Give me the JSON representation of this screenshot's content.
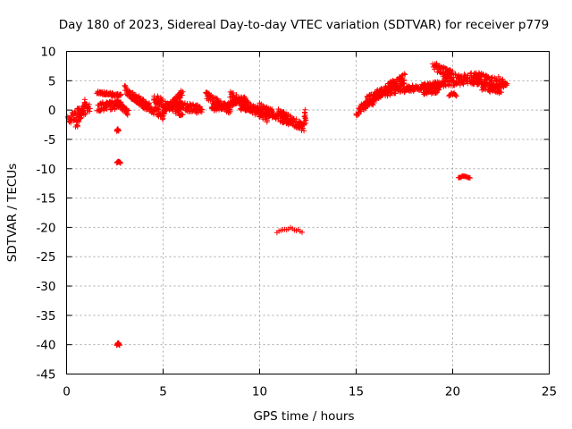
{
  "chart_data": {
    "type": "scatter",
    "title": "Day 180 of 2023, Sidereal Day-to-day VTEC variation (SDTVAR) for receiver p779",
    "xlabel": "GPS time / hours",
    "ylabel": "SDTVAR / TECUs",
    "xlim": [
      0,
      25
    ],
    "ylim": [
      -45,
      10
    ],
    "xticks": [
      0,
      5,
      10,
      15,
      20,
      25
    ],
    "yticks": [
      10,
      5,
      0,
      -5,
      -10,
      -15,
      -20,
      -25,
      -30,
      -35,
      -40,
      -45
    ],
    "grid": true,
    "marker": "+",
    "color": "#ff0000",
    "series": [
      {
        "name": "SDTVAR",
        "segments": [
          {
            "x0": 0.1,
            "y0": -1.5,
            "x1": 1.2,
            "y1": 0.5,
            "spread": 2.0
          },
          {
            "x0": 0.5,
            "y0": -3.0,
            "x1": 1.0,
            "y1": 1.5,
            "spread": 1.0
          },
          {
            "x0": 1.6,
            "y0": 3.0,
            "x1": 2.8,
            "y1": 2.5,
            "spread": 0.5
          },
          {
            "x0": 1.6,
            "y0": 0.5,
            "x1": 2.8,
            "y1": 1.0,
            "spread": 1.5
          },
          {
            "x0": 2.5,
            "y0": 1.5,
            "x1": 3.2,
            "y1": -0.5,
            "spread": 1.0
          },
          {
            "x0": 3.0,
            "y0": 3.5,
            "x1": 4.2,
            "y1": 0.5,
            "spread": 1.5
          },
          {
            "x0": 3.5,
            "y0": 2.0,
            "x1": 5.0,
            "y1": -1.0,
            "spread": 1.5
          },
          {
            "x0": 4.5,
            "y0": 2.0,
            "x1": 6.0,
            "y1": -0.5,
            "spread": 1.5
          },
          {
            "x0": 5.0,
            "y0": -0.5,
            "x1": 6.0,
            "y1": 3.0,
            "spread": 1.0
          },
          {
            "x0": 5.5,
            "y0": 1.0,
            "x1": 7.0,
            "y1": 0.0,
            "spread": 1.5
          },
          {
            "x0": 7.2,
            "y0": 2.5,
            "x1": 8.5,
            "y1": 0.0,
            "spread": 1.5
          },
          {
            "x0": 7.5,
            "y0": 0.0,
            "x1": 9.3,
            "y1": 2.0,
            "spread": 1.0
          },
          {
            "x0": 8.5,
            "y0": 2.5,
            "x1": 10.5,
            "y1": -1.5,
            "spread": 1.5
          },
          {
            "x0": 9.0,
            "y0": 0.5,
            "x1": 10.0,
            "y1": 0.0,
            "spread": 1.0
          },
          {
            "x0": 10.0,
            "y0": 0.5,
            "x1": 11.5,
            "y1": -2.0,
            "spread": 1.5
          },
          {
            "x0": 11.0,
            "y0": -0.5,
            "x1": 12.3,
            "y1": -3.0,
            "spread": 1.5
          },
          {
            "x0": 15.0,
            "y0": -0.5,
            "x1": 16.0,
            "y1": 2.0,
            "spread": 1.5
          },
          {
            "x0": 15.5,
            "y0": 1.5,
            "x1": 17.5,
            "y1": 5.5,
            "spread": 1.5
          },
          {
            "x0": 16.0,
            "y0": 2.5,
            "x1": 17.5,
            "y1": 4.0,
            "spread": 1.5
          },
          {
            "x0": 17.5,
            "y0": 3.5,
            "x1": 19.5,
            "y1": 4.5,
            "spread": 1.0
          },
          {
            "x0": 18.5,
            "y0": 3.0,
            "x1": 19.3,
            "y1": 3.5,
            "spread": 1.0
          },
          {
            "x0": 19.0,
            "y0": 7.5,
            "x1": 20.0,
            "y1": 6.0,
            "spread": 1.5
          },
          {
            "x0": 19.5,
            "y0": 5.0,
            "x1": 21.5,
            "y1": 5.5,
            "spread": 2.0
          },
          {
            "x0": 21.0,
            "y0": 5.5,
            "x1": 22.8,
            "y1": 4.5,
            "spread": 2.0
          },
          {
            "x0": 21.5,
            "y0": 4.0,
            "x1": 22.5,
            "y1": 3.5,
            "spread": 1.5
          }
        ],
        "clusters": [
          {
            "x0": 2.6,
            "x1": 2.8,
            "y0": -9.2,
            "y1": -8.7
          },
          {
            "x0": 2.6,
            "x1": 2.75,
            "y0": -40.5,
            "y1": -39.5
          },
          {
            "x0": 2.6,
            "x1": 2.7,
            "y0": -3.8,
            "y1": -3.2
          },
          {
            "x0": 10.9,
            "x1": 12.2,
            "y0": -21.3,
            "y1": -20.0
          },
          {
            "x0": 20.3,
            "x1": 20.9,
            "y0": -11.8,
            "y1": -11.2
          },
          {
            "x0": 19.8,
            "x1": 20.2,
            "y0": 2.0,
            "y1": 3.0
          },
          {
            "x0": 12.3,
            "x1": 12.4,
            "y0": -3.8,
            "y1": 0.2
          }
        ]
      }
    ]
  }
}
